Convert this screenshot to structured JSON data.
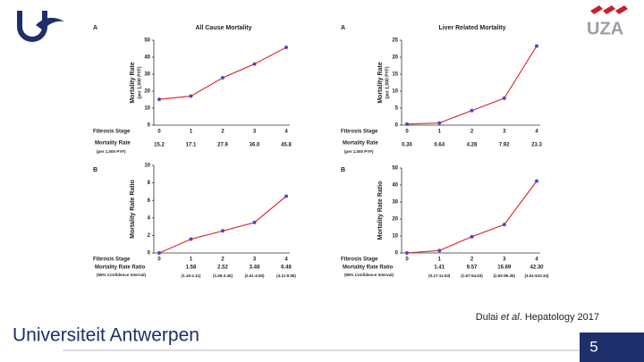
{
  "chart_data": [
    {
      "type": "line",
      "panel_label": "A",
      "title": "All Cause Mortality",
      "ylabel": "Mortality Rate",
      "ylabel_sub": "(per 1,000 PYF)",
      "xlabel": "Fibrosis Stage",
      "categories": [
        "0",
        "1",
        "2",
        "3",
        "4"
      ],
      "values": [
        15.2,
        17.1,
        27.9,
        36.0,
        45.8
      ],
      "row_label": "Mortality Rate",
      "row_sublabel": "(per 1,000 PYF)",
      "value_labels": [
        "15.2",
        "17.1",
        "27.9",
        "36.0",
        "45.8"
      ],
      "ylim": [
        0,
        50
      ],
      "yticks": [
        0,
        10,
        20,
        30,
        40,
        50
      ],
      "color": "#e0302e",
      "marker_color": "#5b3fd0"
    },
    {
      "type": "line",
      "panel_label": "A",
      "title": "Liver Related Mortality",
      "ylabel": "Mortality Rate",
      "ylabel_sub": "(per 1,000 PYF)",
      "xlabel": "Fibrosis Stage",
      "categories": [
        "0",
        "1",
        "2",
        "3",
        "4"
      ],
      "values": [
        0.3,
        0.64,
        4.28,
        7.92,
        23.3
      ],
      "row_label": "Mortality Rate",
      "row_sublabel": "(per 1,000 PYF)",
      "value_labels": [
        "0.30",
        "0.64",
        "4.28",
        "7.92",
        "23.3"
      ],
      "ylim": [
        0,
        25
      ],
      "yticks": [
        0,
        5,
        10,
        15,
        20,
        25
      ],
      "color": "#e0302e",
      "marker_color": "#5b3fd0"
    },
    {
      "type": "line",
      "panel_label": "B",
      "ylabel": "Mortality Rate Ratio",
      "xlabel": "Fibrosis Stage",
      "categories": [
        "0",
        "1",
        "2",
        "3",
        "4"
      ],
      "values": [
        0,
        1.58,
        2.52,
        3.48,
        6.48
      ],
      "row_label": "Mortality Rate Ratio",
      "row_sublabel": "(95% Confidence Interval)",
      "value_labels": [
        null,
        "1.58",
        "2.52",
        "3.48",
        "6.48"
      ],
      "ci_labels": [
        null,
        "(1.19-2.11)",
        "(1.55-3.45)",
        "(2.51-4.55)",
        "(4.11-9.95)"
      ],
      "ylim": [
        0,
        10
      ],
      "yticks": [
        0,
        2,
        4,
        6,
        8,
        10
      ],
      "color": "#e0302e",
      "marker_color": "#5b3fd0"
    },
    {
      "type": "line",
      "panel_label": "B",
      "ylabel": "Mortality Rate Ratio",
      "xlabel": "Fibrosis Stage",
      "categories": [
        "0",
        "1",
        "2",
        "3",
        "4"
      ],
      "values": [
        0,
        1.41,
        9.57,
        16.69,
        42.3
      ],
      "row_label": "Mortality Rate Ratio",
      "row_sublabel": "(95% Confidence Interval)",
      "value_labels": [
        null,
        "1.41",
        "9.57",
        "16.69",
        "42.30"
      ],
      "ci_labels": [
        null,
        "(0.17-11.53)",
        "(1.67-54.53)",
        "(2.92-95.35)",
        "(3.51-510.34)"
      ],
      "ylim": [
        0,
        50
      ],
      "yticks": [
        0,
        10,
        20,
        30,
        40,
        50
      ],
      "color": "#e0302e",
      "marker_color": "#5b3fd0"
    }
  ],
  "citation": {
    "before": "Dulai ",
    "italic": "et al",
    "after": ". Hepatology 2017"
  },
  "university": "Universiteit Antwerpen",
  "hospital_logo": "UZA",
  "slide_number": "5"
}
